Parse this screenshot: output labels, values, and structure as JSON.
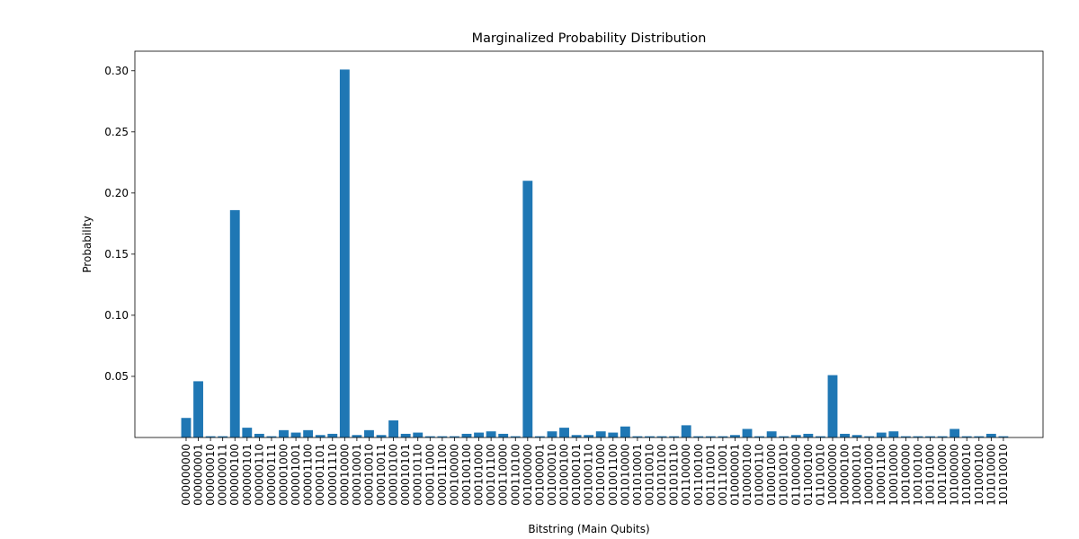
{
  "chart_data": {
    "type": "bar",
    "title": "Marginalized Probability Distribution",
    "xlabel": "Bitstring (Main Qubits)",
    "ylabel": "Probability",
    "color": "#1f77b4",
    "categories": [
      "000000000",
      "000000001",
      "000000010",
      "000000011",
      "000000100",
      "000000101",
      "000000110",
      "000000111",
      "000001000",
      "000001001",
      "000001100",
      "000001101",
      "000001110",
      "000010000",
      "000010001",
      "000010010",
      "000010011",
      "000010100",
      "000010101",
      "000010110",
      "000011000",
      "000011100",
      "000100000",
      "000100100",
      "000101000",
      "000101100",
      "000110000",
      "000110100",
      "001000000",
      "001000001",
      "001000010",
      "001000100",
      "001000101",
      "001000110",
      "001001000",
      "001001100",
      "001010000",
      "001010001",
      "001010010",
      "001010100",
      "001010110",
      "001100000",
      "001100100",
      "001101001",
      "001110001",
      "010000001",
      "010000100",
      "010000110",
      "010001000",
      "010010010",
      "011000000",
      "011000100",
      "011010010",
      "100000000",
      "100000100",
      "100000101",
      "100001000",
      "100001100",
      "100010000",
      "100100000",
      "100100100",
      "100101000",
      "100110000",
      "101000000",
      "101000010",
      "101000100",
      "101010000",
      "101010010"
    ],
    "values": [
      0.016,
      0.046,
      0.001,
      0.001,
      0.186,
      0.008,
      0.003,
      0.001,
      0.006,
      0.004,
      0.006,
      0.002,
      0.003,
      0.301,
      0.002,
      0.006,
      0.002,
      0.014,
      0.003,
      0.004,
      0.001,
      0.001,
      0.001,
      0.003,
      0.004,
      0.005,
      0.003,
      0.001,
      0.21,
      0.001,
      0.005,
      0.008,
      0.002,
      0.002,
      0.005,
      0.004,
      0.009,
      0.001,
      0.001,
      0.001,
      0.001,
      0.01,
      0.001,
      0.001,
      0.001,
      0.002,
      0.007,
      0.001,
      0.005,
      0.001,
      0.002,
      0.003,
      0.001,
      0.051,
      0.003,
      0.002,
      0.001,
      0.004,
      0.005,
      0.001,
      0.001,
      0.001,
      0.001,
      0.007,
      0.001,
      0.001,
      0.003,
      0.001
    ],
    "ylim": [
      0,
      0.316
    ],
    "yticks": [
      0.05,
      {
        "value": 0.1,
        "label": "0.10"
      },
      0.15,
      {
        "value": 0.2,
        "label": "0.20"
      },
      0.25,
      {
        "value": 0.3,
        "label": "0.30"
      }
    ],
    "grid": false
  }
}
